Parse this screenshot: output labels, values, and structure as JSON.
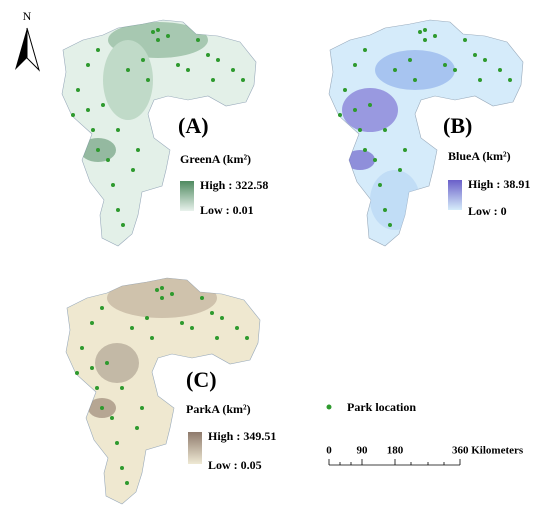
{
  "north_arrow": "N",
  "panels": [
    {
      "letter": "(A)",
      "variable": "GreenA (km²)",
      "high": "High : 322.58",
      "low": "Low : 0.01"
    },
    {
      "letter": "(B)",
      "variable": "BlueA (km²)",
      "high": "High : 38.91",
      "low": "Low : 0"
    },
    {
      "letter": "(C)",
      "variable": "ParkA (km²)",
      "high": "High : 349.51",
      "low": "Low : 0.05"
    }
  ],
  "legend": {
    "park": "Park location"
  },
  "scale_bar": {
    "ticks": [
      "0",
      "90",
      "180"
    ],
    "end": "360 Kilometers"
  }
}
